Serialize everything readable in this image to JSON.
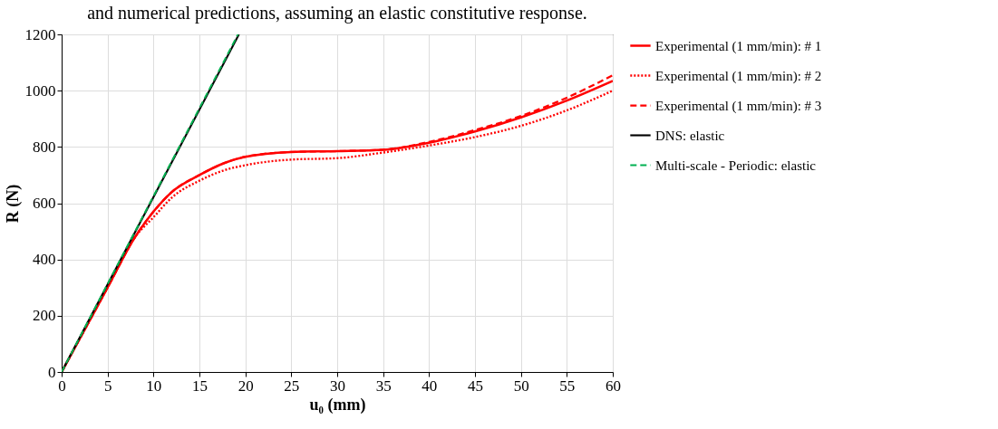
{
  "chart_data": {
    "type": "line",
    "title": "and numerical predictions, assuming an elastic constitutive response.",
    "xlabel": "u₀ (mm)",
    "ylabel": "R (N)",
    "xlim": [
      0,
      60
    ],
    "xticks": [
      0,
      5,
      10,
      15,
      20,
      25,
      30,
      35,
      40,
      45,
      50,
      55,
      60
    ],
    "ylim": [
      0,
      1200
    ],
    "yticks": [
      0,
      200,
      400,
      600,
      800,
      1000,
      1200
    ],
    "grid": true,
    "legend": "right",
    "marker": "none",
    "series": [
      {
        "name": "Experimental (1 mm/min): # 1",
        "color": "#ff0000",
        "line_style": "solid",
        "x": [
          0,
          2.5,
          5,
          8,
          10,
          12,
          15,
          17.5,
          20,
          25,
          30,
          35,
          40,
          45,
          50,
          55,
          60
        ],
        "values": [
          0,
          150,
          300,
          480,
          570,
          640,
          700,
          740,
          765,
          782,
          785,
          790,
          815,
          855,
          905,
          965,
          1035
        ]
      },
      {
        "name": "Experimental (1 mm/min): # 2",
        "color": "#ff0000",
        "line_style": "dotted",
        "x": [
          0,
          2.5,
          5,
          8,
          10,
          12,
          15,
          17.5,
          20,
          25,
          30,
          35,
          40,
          45,
          50,
          55,
          60
        ],
        "values": [
          0,
          150,
          300,
          480,
          550,
          620,
          680,
          715,
          735,
          755,
          760,
          780,
          805,
          835,
          875,
          930,
          1000
        ]
      },
      {
        "name": "Experimental (1 mm/min): # 3",
        "color": "#ff0000",
        "line_style": "dashed",
        "x": [
          0,
          2.5,
          5,
          8,
          10,
          12,
          15,
          17.5,
          20,
          25,
          30,
          35,
          40,
          45,
          50,
          55,
          60
        ],
        "values": [
          0,
          150,
          300,
          480,
          570,
          640,
          700,
          740,
          765,
          782,
          785,
          790,
          818,
          860,
          910,
          975,
          1055
        ]
      },
      {
        "name": "DNS: elastic",
        "color": "#000000",
        "line_style": "solid",
        "x": [
          0,
          19.3
        ],
        "values": [
          0,
          1200
        ]
      },
      {
        "name": "Multi-scale - Periodic: elastic",
        "color": "#00b050",
        "line_style": "dashed",
        "x": [
          0,
          19.2
        ],
        "values": [
          0,
          1200
        ]
      }
    ]
  }
}
